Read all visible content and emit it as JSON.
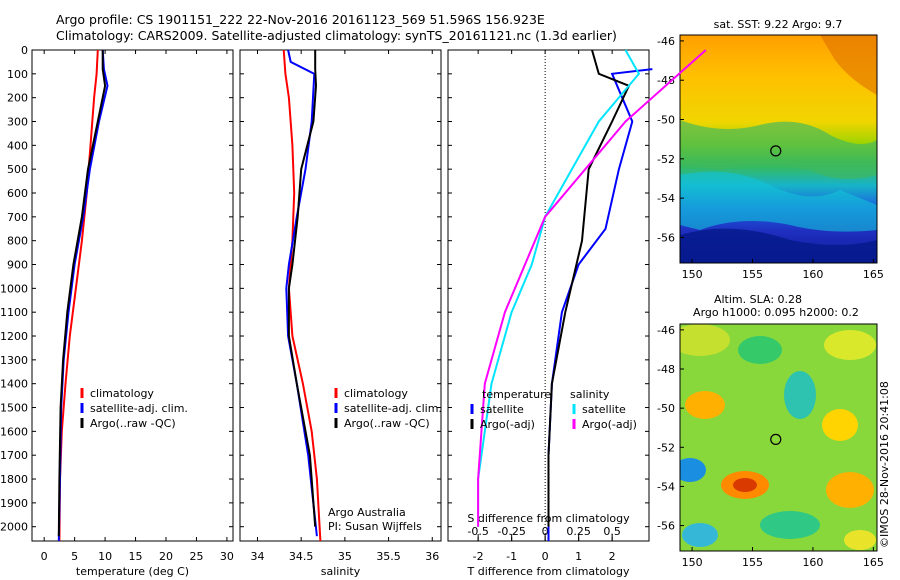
{
  "header": {
    "line1": "Argo profile: CS 1901151_222 22-Nov-2016 20161123_569 51.596S 156.923E",
    "line2": "Climatology: CARS2009. Satellite-adjusted climatology: synTS_20161121.nc (1.3d earlier)"
  },
  "stamp": "©IMOS 28-Nov-2016 20:41:08",
  "colors": {
    "climatology": "#ff0000",
    "satellite": "#0000ff",
    "argo": "#000000",
    "salinity_satellite": "#00e5ff",
    "salinity_argo": "#ff00ff"
  },
  "chart_data": [
    {
      "type": "line",
      "panel": "temperature",
      "xlabel": "temperature (deg C)",
      "xticks": [
        "0",
        "5",
        "10",
        "15",
        "20",
        "25",
        "30"
      ],
      "xlim": [
        -2,
        31
      ],
      "ylim": [
        0,
        2060
      ],
      "y_inverted": true,
      "yticks": [
        "0",
        "100",
        "200",
        "300",
        "400",
        "500",
        "600",
        "700",
        "800",
        "900",
        "1000",
        "1100",
        "1200",
        "1300",
        "1400",
        "1500",
        "1600",
        "1700",
        "1800",
        "1900",
        "2000"
      ],
      "legend": [
        "climatology",
        "satellite-adj. clim.",
        "Argo(..raw -QC)"
      ],
      "legend_position": "bottom-right",
      "series": [
        {
          "name": "climatology",
          "color": "#ff0000",
          "x": [
            8.8,
            8.6,
            8.2,
            7.6,
            7.0,
            6.2,
            5.2,
            4.2,
            3.5,
            2.9,
            2.6,
            2.5
          ],
          "y": [
            0,
            100,
            200,
            400,
            600,
            800,
            1000,
            1200,
            1400,
            1600,
            1800,
            2060
          ]
        },
        {
          "name": "satellite-adj. clim.",
          "color": "#0000ff",
          "x": [
            9.6,
            9.8,
            10.4,
            9.0,
            7.5,
            6.4,
            5.0,
            4.0,
            3.2,
            2.8,
            2.6,
            2.4
          ],
          "y": [
            0,
            80,
            150,
            300,
            500,
            700,
            900,
            1100,
            1300,
            1500,
            1800,
            2060
          ]
        },
        {
          "name": "Argo(..raw -QC)",
          "color": "#000000",
          "x": [
            9.6,
            9.6,
            10.0,
            8.8,
            7.2,
            6.2,
            4.8,
            3.8,
            3.1,
            2.7,
            2.5,
            2.4
          ],
          "y": [
            0,
            80,
            150,
            300,
            500,
            700,
            900,
            1100,
            1300,
            1500,
            1800,
            2040
          ]
        }
      ]
    },
    {
      "type": "line",
      "panel": "salinity",
      "xlabel": "salinity",
      "xticks": [
        "34",
        "34.5",
        "35",
        "35.5",
        "36"
      ],
      "xlim": [
        33.8,
        36.1
      ],
      "ylim": [
        0,
        2060
      ],
      "y_inverted": true,
      "legend": [
        "climatology",
        "satellite-adj. clim.",
        "Argo(..raw -QC)"
      ],
      "legend_position": "bottom-right",
      "annotations": [
        "Argo Australia",
        "PI: Susan Wijffels"
      ],
      "series": [
        {
          "name": "climatology",
          "color": "#ff0000",
          "x": [
            34.3,
            34.32,
            34.36,
            34.4,
            34.42,
            34.4,
            34.36,
            34.4,
            34.52,
            34.62,
            34.68,
            34.72
          ],
          "y": [
            0,
            100,
            200,
            400,
            600,
            800,
            1000,
            1200,
            1400,
            1600,
            1800,
            2060
          ]
        },
        {
          "name": "satellite-adj. clim.",
          "color": "#0000ff",
          "x": [
            34.35,
            34.38,
            34.65,
            34.62,
            34.55,
            34.45,
            34.36,
            34.33,
            34.35,
            34.45,
            34.58,
            34.68
          ],
          "y": [
            0,
            50,
            100,
            300,
            500,
            700,
            900,
            1000,
            1200,
            1400,
            1700,
            2040
          ]
        },
        {
          "name": "Argo(..raw -QC)",
          "color": "#000000",
          "x": [
            34.66,
            34.66,
            34.67,
            34.64,
            34.5,
            34.46,
            34.4,
            34.36,
            34.36,
            34.45,
            34.6,
            34.66
          ],
          "y": [
            0,
            80,
            150,
            300,
            500,
            700,
            900,
            1000,
            1200,
            1400,
            1700,
            2000
          ]
        }
      ]
    },
    {
      "type": "line",
      "panel": "difference",
      "xlabel": "T difference from climatology",
      "xlabel_secondary": "S difference from climatology",
      "xticks": [
        "-2",
        "-1",
        "0",
        "1",
        "2"
      ],
      "xticks_secondary": [
        "-0.5",
        "-0.25",
        "0",
        "0.25",
        "0.5"
      ],
      "xlim": [
        -2.9,
        3.1
      ],
      "ylim": [
        0,
        2060
      ],
      "y_inverted": true,
      "legend_temperature_title": "temperature",
      "legend_salinity_title": "salinity",
      "legend_temperature": [
        "satellite",
        "Argo(-adj)"
      ],
      "legend_salinity": [
        "satellite",
        "Argo(-adj)"
      ],
      "series": [
        {
          "name": "satellite",
          "group": "temperature",
          "color": "#0000ff",
          "x": [
            3.2,
            2.0,
            2.3,
            2.6,
            2.2,
            1.8,
            1.0,
            0.5,
            0.2,
            0.1,
            0.1
          ],
          "y": [
            80,
            100,
            200,
            300,
            500,
            750,
            900,
            1100,
            1400,
            1700,
            2060
          ]
        },
        {
          "name": "Argo(-adj)",
          "group": "temperature",
          "color": "#000000",
          "x": [
            1.4,
            1.6,
            2.5,
            2.0,
            1.3,
            1.1,
            0.6,
            0.2,
            0.1,
            0.1
          ],
          "y": [
            0,
            100,
            150,
            300,
            500,
            800,
            1100,
            1400,
            1700,
            2000
          ]
        },
        {
          "name": "satellite",
          "group": "salinity",
          "color": "#00e5ff",
          "x": [
            0.6,
            0.7,
            0.4,
            0.0,
            -0.1,
            -0.25,
            -0.4,
            -0.5,
            -0.5
          ],
          "y": [
            0,
            100,
            300,
            700,
            900,
            1100,
            1400,
            1800,
            2000
          ]
        },
        {
          "name": "Argo(-adj)",
          "group": "salinity",
          "color": "#ff00ff",
          "x": [
            1.2,
            1.0,
            0.6,
            0.0,
            -0.15,
            -0.3,
            -0.45,
            -0.5,
            -0.5
          ],
          "y": [
            0,
            100,
            300,
            700,
            900,
            1100,
            1400,
            1800,
            2000
          ]
        }
      ]
    },
    {
      "type": "heatmap",
      "panel": "sst_map",
      "title": "sat. SST: 9.22 Argo: 9.7",
      "xticks": [
        "150",
        "155",
        "160",
        "165"
      ],
      "yticks": [
        "-46",
        "-48",
        "-50",
        "-52",
        "-54",
        "-56"
      ],
      "xlim": [
        149,
        165.3
      ],
      "ylim": [
        -57.3,
        -45.7
      ],
      "marker": {
        "lon": 156.923,
        "lat": -51.596
      }
    },
    {
      "type": "heatmap",
      "panel": "sla_map",
      "title": "Altim. SLA: 0.28",
      "subtitle": "Argo h1000: 0.095 h2000: 0.2",
      "xticks": [
        "150",
        "155",
        "160",
        "165"
      ],
      "yticks": [
        "-46",
        "-48",
        "-50",
        "-52",
        "-54",
        "-56"
      ],
      "xlim": [
        149,
        165.3
      ],
      "ylim": [
        -57.3,
        -45.7
      ],
      "marker": {
        "lon": 156.923,
        "lat": -51.596
      }
    }
  ]
}
